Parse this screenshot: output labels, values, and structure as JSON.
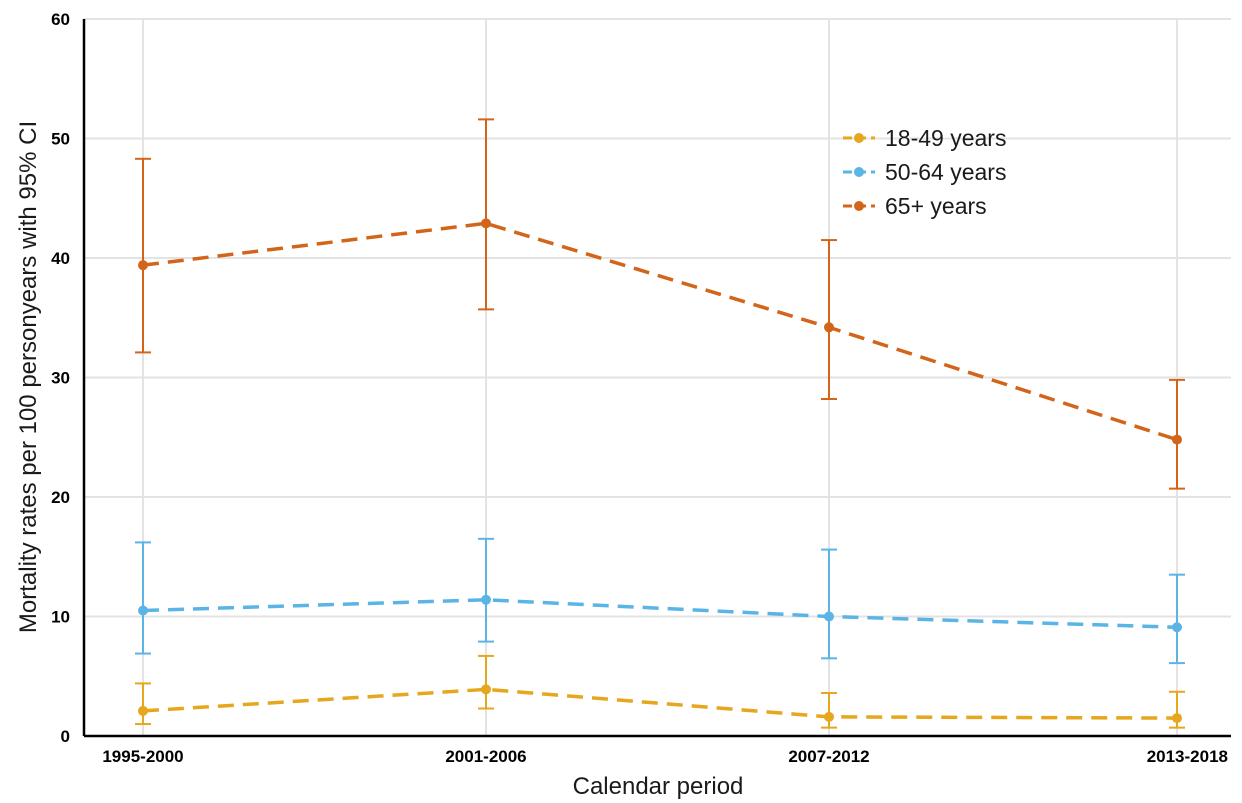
{
  "chart_data": {
    "type": "line",
    "title": "",
    "xlabel": "Calendar period",
    "ylabel": "Mortality rates per 100 personyears with 95% CI",
    "categories": [
      "1995-2000",
      "2001-2006",
      "2007-2012",
      "2013-2018"
    ],
    "ylim": [
      0,
      60
    ],
    "yticks": [
      0,
      10,
      20,
      30,
      40,
      50,
      60
    ],
    "grid": true,
    "legend_position": "top-right",
    "line_style": "dashed",
    "error_bars": "95% CI",
    "series": [
      {
        "name": "18-49 years",
        "color": "#E6A61E",
        "values": [
          2.1,
          3.9,
          1.6,
          1.5
        ],
        "ci_low": [
          1.0,
          2.3,
          0.7,
          0.7
        ],
        "ci_high": [
          4.4,
          6.7,
          3.6,
          3.7
        ]
      },
      {
        "name": "50-64 years",
        "color": "#5AB4E5",
        "values": [
          10.5,
          11.4,
          10.0,
          9.1
        ],
        "ci_low": [
          6.9,
          7.9,
          6.5,
          6.1
        ],
        "ci_high": [
          16.2,
          16.5,
          15.6,
          13.5
        ]
      },
      {
        "name": "65+ years",
        "color": "#D3651A",
        "values": [
          39.4,
          42.9,
          34.2,
          24.8
        ],
        "ci_low": [
          32.1,
          35.7,
          28.2,
          20.7
        ],
        "ci_high": [
          48.3,
          51.6,
          41.5,
          29.8
        ]
      }
    ]
  }
}
